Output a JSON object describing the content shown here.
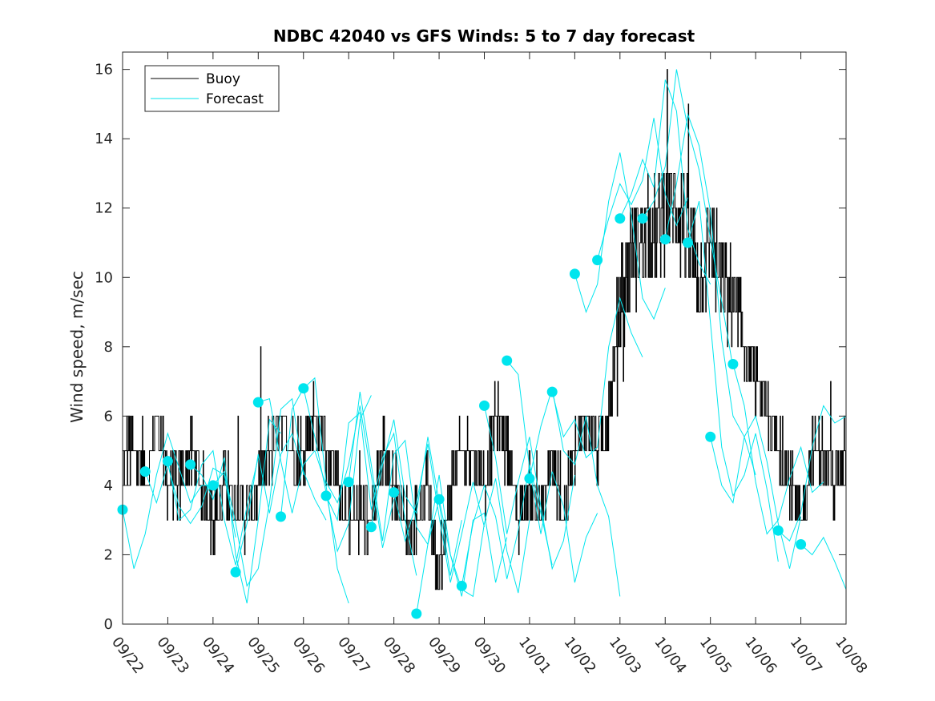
{
  "chart_data": {
    "type": "line",
    "title": "NDBC 42040 vs GFS Winds: 5 to 7 day forecast",
    "xlabel": "",
    "ylabel": "Wind speed, m/sec",
    "xlim": [
      0,
      16
    ],
    "ylim": [
      0,
      16.5
    ],
    "grid": false,
    "legend_position": "top-left",
    "x_tick_labels": [
      "09/22",
      "09/23",
      "09/24",
      "09/25",
      "09/26",
      "09/27",
      "09/28",
      "09/29",
      "09/30",
      "10/01",
      "10/02",
      "10/03",
      "10/04",
      "10/05",
      "10/06",
      "10/07",
      "10/08"
    ],
    "y_ticks": [
      0,
      2,
      4,
      6,
      8,
      10,
      12,
      14,
      16
    ],
    "colors": {
      "buoy": "#000000",
      "forecast": "#00e5ee",
      "axes": "#262626"
    },
    "legend": [
      {
        "label": "Buoy",
        "color": "#000000"
      },
      {
        "label": "Forecast",
        "color": "#00e5ee"
      }
    ],
    "buoy_profile": [
      [
        0.0,
        5
      ],
      [
        0.25,
        5
      ],
      [
        0.5,
        4
      ],
      [
        0.75,
        6
      ],
      [
        1.0,
        4
      ],
      [
        1.25,
        4
      ],
      [
        1.5,
        5
      ],
      [
        1.75,
        4
      ],
      [
        2.0,
        3
      ],
      [
        2.25,
        4
      ],
      [
        2.5,
        3.5
      ],
      [
        2.75,
        3
      ],
      [
        3.0,
        4
      ],
      [
        3.25,
        5
      ],
      [
        3.5,
        6
      ],
      [
        3.75,
        5
      ],
      [
        4.0,
        5
      ],
      [
        4.25,
        6
      ],
      [
        4.5,
        5
      ],
      [
        4.75,
        4
      ],
      [
        5.0,
        3
      ],
      [
        5.25,
        3
      ],
      [
        5.5,
        3
      ],
      [
        5.75,
        5
      ],
      [
        6.0,
        4
      ],
      [
        6.25,
        3
      ],
      [
        6.5,
        3
      ],
      [
        6.75,
        4
      ],
      [
        7.0,
        1
      ],
      [
        7.25,
        4
      ],
      [
        7.5,
        5
      ],
      [
        7.75,
        5
      ],
      [
        8.0,
        4
      ],
      [
        8.25,
        6
      ],
      [
        8.5,
        5
      ],
      [
        8.75,
        3
      ],
      [
        9.0,
        4
      ],
      [
        9.25,
        3
      ],
      [
        9.5,
        5
      ],
      [
        9.75,
        3
      ],
      [
        10.0,
        5
      ],
      [
        10.25,
        6
      ],
      [
        10.5,
        5
      ],
      [
        10.75,
        6
      ],
      [
        11.0,
        9
      ],
      [
        11.25,
        11
      ],
      [
        11.5,
        11
      ],
      [
        11.75,
        11
      ],
      [
        12.0,
        12
      ],
      [
        12.25,
        12
      ],
      [
        12.5,
        11
      ],
      [
        12.75,
        10
      ],
      [
        13.0,
        11
      ],
      [
        13.25,
        10
      ],
      [
        13.5,
        9
      ],
      [
        13.75,
        8
      ],
      [
        14.0,
        7
      ],
      [
        14.25,
        6
      ],
      [
        14.5,
        5
      ],
      [
        14.75,
        4
      ],
      [
        15.0,
        3
      ],
      [
        15.25,
        5
      ],
      [
        15.5,
        5
      ],
      [
        15.75,
        4
      ],
      [
        16.0,
        5
      ]
    ],
    "forecast_runs": [
      [
        [
          0.0,
          3.3
        ],
        [
          0.25,
          1.6
        ],
        [
          0.5,
          2.6
        ],
        [
          0.75,
          4.3
        ],
        [
          1.0,
          5.5
        ],
        [
          1.25,
          4.5
        ],
        [
          1.5,
          3.5
        ],
        [
          1.75,
          4.0
        ],
        [
          2.0,
          4.0
        ]
      ],
      [
        [
          0.5,
          4.4
        ],
        [
          0.75,
          3.5
        ],
        [
          1.0,
          4.6
        ],
        [
          1.25,
          3.4
        ],
        [
          1.5,
          2.9
        ],
        [
          1.75,
          3.4
        ],
        [
          2.0,
          4.5
        ],
        [
          2.25,
          4.3
        ],
        [
          2.5,
          2.5
        ]
      ],
      [
        [
          1.0,
          4.7
        ],
        [
          1.25,
          3.0
        ],
        [
          1.5,
          3.3
        ],
        [
          1.75,
          4.6
        ],
        [
          2.0,
          5.0
        ],
        [
          2.25,
          3.0
        ],
        [
          2.5,
          1.7
        ],
        [
          2.75,
          3.4
        ],
        [
          3.0,
          4.8
        ]
      ],
      [
        [
          1.5,
          4.6
        ],
        [
          1.75,
          4.3
        ],
        [
          2.0,
          3.6
        ],
        [
          2.25,
          4.8
        ],
        [
          2.5,
          2.0
        ],
        [
          2.75,
          0.6
        ],
        [
          3.0,
          3.0
        ],
        [
          3.25,
          5.9
        ],
        [
          3.5,
          5.5
        ]
      ],
      [
        [
          2.0,
          4.0
        ],
        [
          2.25,
          4.4
        ],
        [
          2.5,
          2.9
        ],
        [
          2.75,
          1.1
        ],
        [
          3.0,
          1.6
        ],
        [
          3.25,
          3.5
        ],
        [
          3.5,
          6.2
        ],
        [
          3.75,
          6.5
        ],
        [
          4.0,
          4.3
        ]
      ],
      [
        [
          2.5,
          1.5
        ],
        [
          2.75,
          2.9
        ],
        [
          3.0,
          4.9
        ],
        [
          3.25,
          3.2
        ],
        [
          3.5,
          4.9
        ],
        [
          3.75,
          5.5
        ],
        [
          4.0,
          4.4
        ],
        [
          4.25,
          3.6
        ],
        [
          4.5,
          3.0
        ]
      ],
      [
        [
          3.0,
          6.4
        ],
        [
          3.25,
          6.5
        ],
        [
          3.5,
          4.7
        ],
        [
          3.75,
          3.2
        ],
        [
          4.0,
          4.6
        ],
        [
          4.25,
          5.0
        ],
        [
          4.5,
          4.0
        ],
        [
          4.75,
          1.6
        ],
        [
          5.0,
          0.6
        ]
      ],
      [
        [
          3.5,
          3.1
        ],
        [
          3.75,
          6.2
        ],
        [
          4.0,
          6.8
        ],
        [
          4.25,
          5.4
        ],
        [
          4.5,
          3.8
        ],
        [
          4.75,
          2.1
        ],
        [
          5.0,
          2.9
        ],
        [
          5.25,
          5.9
        ],
        [
          5.5,
          6.6
        ]
      ],
      [
        [
          4.0,
          6.8
        ],
        [
          4.25,
          7.1
        ],
        [
          4.5,
          4.1
        ],
        [
          4.75,
          3.5
        ],
        [
          5.0,
          4.6
        ],
        [
          5.25,
          6.3
        ],
        [
          5.5,
          4.3
        ],
        [
          5.75,
          2.2
        ],
        [
          6.0,
          3.6
        ]
      ],
      [
        [
          4.5,
          3.7
        ],
        [
          4.75,
          3.0
        ],
        [
          5.0,
          5.8
        ],
        [
          5.25,
          6.1
        ],
        [
          5.5,
          3.3
        ],
        [
          5.75,
          4.8
        ],
        [
          6.0,
          5.5
        ],
        [
          6.25,
          3.0
        ],
        [
          6.5,
          1.4
        ]
      ],
      [
        [
          5.0,
          4.1
        ],
        [
          5.25,
          6.7
        ],
        [
          5.5,
          4.6
        ],
        [
          5.75,
          2.4
        ],
        [
          6.0,
          4.9
        ],
        [
          6.25,
          5.3
        ],
        [
          6.5,
          2.8
        ],
        [
          6.75,
          2.3
        ],
        [
          7.0,
          3.6
        ]
      ],
      [
        [
          5.5,
          2.8
        ],
        [
          5.75,
          4.6
        ],
        [
          6.0,
          5.9
        ],
        [
          6.25,
          3.7
        ],
        [
          6.5,
          3.2
        ],
        [
          6.75,
          5.4
        ],
        [
          7.0,
          3.5
        ],
        [
          7.25,
          1.4
        ],
        [
          7.5,
          3.0
        ]
      ],
      [
        [
          6.0,
          3.8
        ],
        [
          6.25,
          2.4
        ],
        [
          6.5,
          3.5
        ],
        [
          6.75,
          5.2
        ],
        [
          7.0,
          3.1
        ],
        [
          7.25,
          1.2
        ],
        [
          7.5,
          2.6
        ],
        [
          7.75,
          4.1
        ],
        [
          8.0,
          2.8
        ]
      ],
      [
        [
          6.5,
          0.3
        ],
        [
          6.75,
          2.3
        ],
        [
          7.0,
          4.3
        ],
        [
          7.25,
          2.0
        ],
        [
          7.5,
          0.8
        ],
        [
          7.75,
          3.0
        ],
        [
          8.0,
          3.2
        ],
        [
          8.25,
          1.2
        ],
        [
          8.5,
          2.5
        ]
      ],
      [
        [
          7.0,
          3.6
        ],
        [
          7.25,
          2.0
        ],
        [
          7.5,
          1.0
        ],
        [
          7.75,
          0.8
        ],
        [
          8.0,
          2.9
        ],
        [
          8.25,
          4.2
        ],
        [
          8.5,
          2.1
        ],
        [
          8.75,
          0.9
        ],
        [
          9.0,
          3.0
        ]
      ],
      [
        [
          7.5,
          1.1
        ],
        [
          7.75,
          2.9
        ],
        [
          8.0,
          4.0
        ],
        [
          8.25,
          3.1
        ],
        [
          8.5,
          1.3
        ],
        [
          8.75,
          2.7
        ],
        [
          9.0,
          4.6
        ],
        [
          9.25,
          3.2
        ],
        [
          9.5,
          1.7
        ]
      ],
      [
        [
          8.0,
          6.3
        ],
        [
          8.25,
          4.8
        ],
        [
          8.5,
          2.6
        ],
        [
          8.75,
          4.1
        ],
        [
          9.0,
          5.4
        ],
        [
          9.25,
          3.4
        ],
        [
          9.5,
          1.6
        ],
        [
          9.75,
          2.4
        ],
        [
          10.0,
          4.3
        ]
      ],
      [
        [
          8.5,
          7.6
        ],
        [
          8.75,
          7.2
        ],
        [
          9.0,
          4.5
        ],
        [
          9.25,
          2.6
        ],
        [
          9.5,
          4.4
        ],
        [
          9.75,
          3.4
        ],
        [
          10.0,
          1.2
        ],
        [
          10.25,
          2.5
        ],
        [
          10.5,
          3.2
        ]
      ],
      [
        [
          9.0,
          4.2
        ],
        [
          9.25,
          5.7
        ],
        [
          9.5,
          6.8
        ],
        [
          9.75,
          5.0
        ],
        [
          10.0,
          4.6
        ],
        [
          10.25,
          6.0
        ],
        [
          10.5,
          4.0
        ],
        [
          10.75,
          3.1
        ],
        [
          11.0,
          0.8
        ]
      ],
      [
        [
          9.5,
          6.7
        ],
        [
          9.75,
          5.4
        ],
        [
          10.0,
          5.9
        ],
        [
          10.25,
          4.8
        ],
        [
          10.5,
          5.1
        ],
        [
          10.75,
          8.0
        ],
        [
          11.0,
          9.4
        ],
        [
          11.25,
          8.4
        ],
        [
          11.5,
          7.7
        ]
      ],
      [
        [
          10.0,
          10.1
        ],
        [
          10.25,
          9.0
        ],
        [
          10.5,
          9.8
        ],
        [
          10.75,
          12.2
        ],
        [
          11.0,
          13.6
        ],
        [
          11.25,
          11.8
        ],
        [
          11.5,
          9.4
        ],
        [
          11.75,
          8.8
        ],
        [
          12.0,
          9.7
        ]
      ],
      [
        [
          10.5,
          10.5
        ],
        [
          10.75,
          11.7
        ],
        [
          11.0,
          12.7
        ],
        [
          11.25,
          12.1
        ],
        [
          11.5,
          12.8
        ],
        [
          11.75,
          14.6
        ],
        [
          12.0,
          12.4
        ],
        [
          12.25,
          11.5
        ],
        [
          12.5,
          12.3
        ]
      ],
      [
        [
          11.0,
          11.7
        ],
        [
          11.25,
          12.4
        ],
        [
          11.5,
          13.4
        ],
        [
          11.75,
          12.6
        ],
        [
          12.0,
          15.7
        ],
        [
          12.25,
          14.8
        ],
        [
          12.5,
          11.4
        ],
        [
          12.75,
          10.4
        ],
        [
          13.0,
          9.8
        ]
      ],
      [
        [
          11.5,
          11.7
        ],
        [
          11.75,
          12.2
        ],
        [
          12.0,
          13.2
        ],
        [
          12.25,
          16.0
        ],
        [
          12.5,
          14.3
        ],
        [
          12.75,
          13.1
        ],
        [
          13.0,
          11.1
        ],
        [
          13.25,
          9.3
        ],
        [
          13.5,
          7.4
        ]
      ],
      [
        [
          12.0,
          11.1
        ],
        [
          12.25,
          12.7
        ],
        [
          12.5,
          14.7
        ],
        [
          12.75,
          13.8
        ],
        [
          13.0,
          11.9
        ],
        [
          13.25,
          8.2
        ],
        [
          13.5,
          6.0
        ],
        [
          13.75,
          5.4
        ],
        [
          14.0,
          4.3
        ]
      ],
      [
        [
          12.5,
          11.0
        ],
        [
          12.75,
          12.2
        ],
        [
          13.0,
          8.7
        ],
        [
          13.25,
          5.1
        ],
        [
          13.5,
          3.7
        ],
        [
          13.75,
          4.3
        ],
        [
          14.0,
          5.5
        ],
        [
          14.25,
          3.9
        ],
        [
          14.5,
          1.8
        ]
      ],
      [
        [
          13.0,
          5.4
        ],
        [
          13.25,
          4.0
        ],
        [
          13.5,
          3.5
        ],
        [
          13.75,
          5.4
        ],
        [
          14.0,
          6.0
        ],
        [
          14.25,
          4.7
        ],
        [
          14.5,
          2.9
        ],
        [
          14.75,
          1.6
        ],
        [
          15.0,
          3.1
        ]
      ],
      [
        [
          13.5,
          7.5
        ],
        [
          13.75,
          6.3
        ],
        [
          14.0,
          4.1
        ],
        [
          14.25,
          2.6
        ],
        [
          14.5,
          3.0
        ],
        [
          14.75,
          4.2
        ],
        [
          15.0,
          5.1
        ],
        [
          15.25,
          3.8
        ],
        [
          15.5,
          4.1
        ]
      ],
      [
        [
          14.5,
          2.7
        ],
        [
          14.75,
          2.4
        ],
        [
          15.0,
          3.2
        ],
        [
          15.25,
          5.1
        ],
        [
          15.5,
          6.3
        ],
        [
          15.75,
          5.8
        ],
        [
          16.0,
          6.0
        ]
      ],
      [
        [
          15.0,
          2.3
        ],
        [
          15.25,
          2.0
        ],
        [
          15.5,
          2.5
        ],
        [
          15.75,
          1.8
        ],
        [
          16.0,
          1.0
        ]
      ]
    ],
    "forecast_markers": [
      [
        0.0,
        3.3
      ],
      [
        0.5,
        4.4
      ],
      [
        1.0,
        4.7
      ],
      [
        1.5,
        4.6
      ],
      [
        2.0,
        4.0
      ],
      [
        2.5,
        1.5
      ],
      [
        3.0,
        6.4
      ],
      [
        3.5,
        3.1
      ],
      [
        4.0,
        6.8
      ],
      [
        4.5,
        3.7
      ],
      [
        5.0,
        4.1
      ],
      [
        5.5,
        2.8
      ],
      [
        6.0,
        3.8
      ],
      [
        6.5,
        0.3
      ],
      [
        7.0,
        3.6
      ],
      [
        7.5,
        1.1
      ],
      [
        8.0,
        6.3
      ],
      [
        8.5,
        7.6
      ],
      [
        9.0,
        4.2
      ],
      [
        9.5,
        6.7
      ],
      [
        10.0,
        10.1
      ],
      [
        10.5,
        10.5
      ],
      [
        11.0,
        11.7
      ],
      [
        11.5,
        11.7
      ],
      [
        12.0,
        11.1
      ],
      [
        12.5,
        11.0
      ],
      [
        13.0,
        5.4
      ],
      [
        13.5,
        7.5
      ],
      [
        14.5,
        2.7
      ],
      [
        15.0,
        2.3
      ]
    ]
  }
}
